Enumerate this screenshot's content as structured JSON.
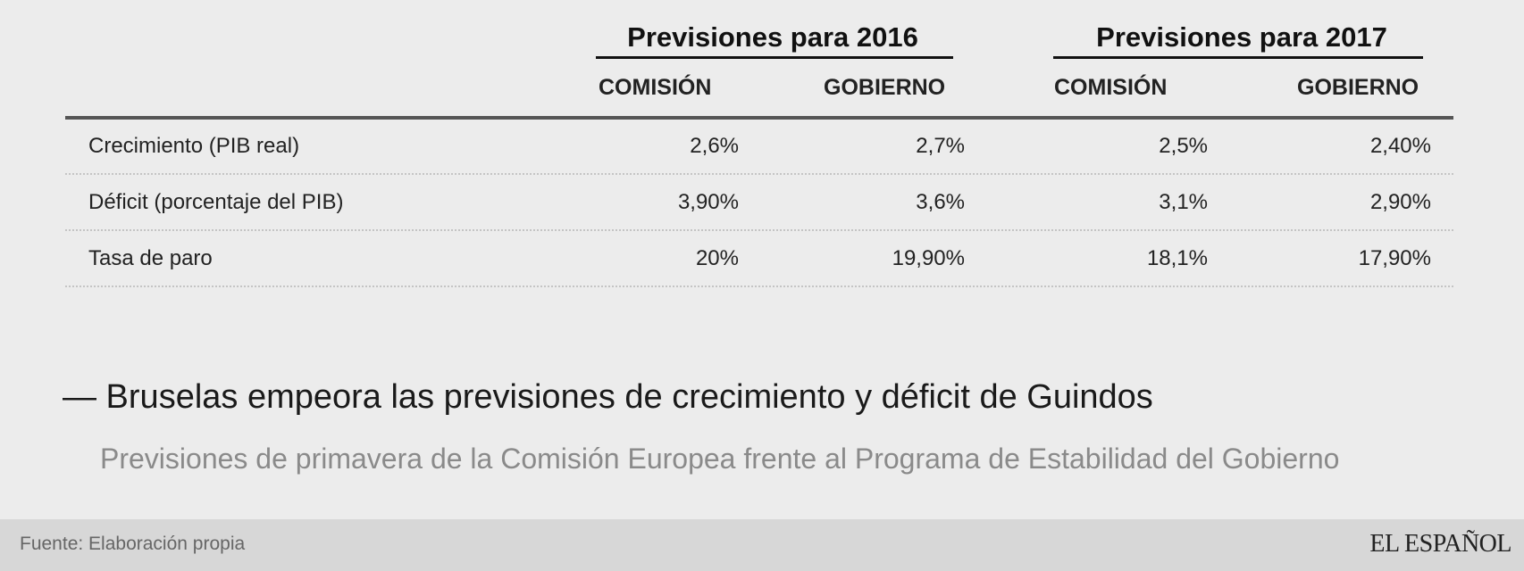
{
  "chart_data": {
    "type": "table",
    "title": "— Bruselas empeora las previsiones de crecimiento y déficit de Guindos",
    "subtitle": "Previsiones de primavera de la Comisión Europea frente al Programa de Estabilidad del Gobierno",
    "groups": [
      {
        "title": "Previsiones para 2016",
        "columns": [
          "COMISIÓN",
          "GOBIERNO"
        ]
      },
      {
        "title": "Previsiones para 2017",
        "columns": [
          "COMISIÓN",
          "GOBIERNO"
        ]
      }
    ],
    "rows": [
      {
        "label": "Crecimiento (PIB real)",
        "values": [
          "2,6%",
          "2,7%",
          "2,5%",
          "2,40%"
        ]
      },
      {
        "label": "Déficit (porcentaje del PIB)",
        "values": [
          "3,90%",
          "3,6%",
          "3,1%",
          "2,90%"
        ]
      },
      {
        "label": "Tasa de paro",
        "values": [
          "20%",
          "19,90%",
          "18,1%",
          "17,90%"
        ]
      }
    ],
    "source": "Fuente: Elaboración propia",
    "brand": "EL ESPAÑOL"
  },
  "colors": {
    "background": "#ececec",
    "footer_background": "#d7d7d7",
    "rule": "#555555",
    "subtitle": "#8a8a8a"
  }
}
